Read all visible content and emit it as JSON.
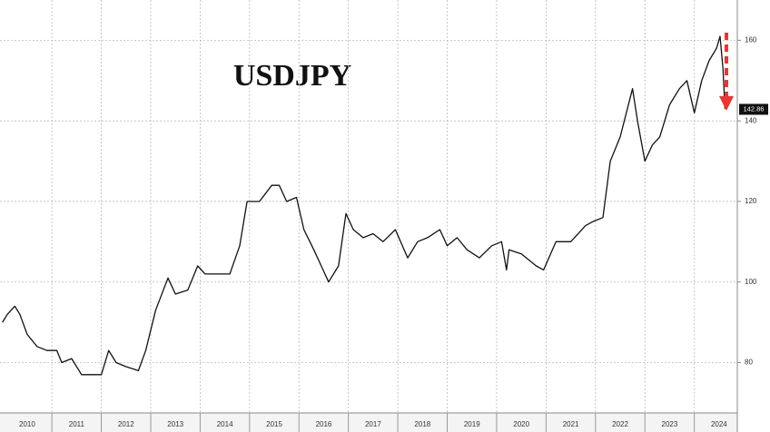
{
  "chart_data": {
    "type": "line",
    "title": "USDJPY",
    "x": [
      2010.0,
      2010.1,
      2010.25,
      2010.35,
      2010.5,
      2010.7,
      2010.9,
      2011.1,
      2011.2,
      2011.4,
      2011.6,
      2011.8,
      2012.0,
      2012.15,
      2012.3,
      2012.5,
      2012.75,
      2012.9,
      2013.1,
      2013.35,
      2013.5,
      2013.75,
      2013.95,
      2014.1,
      2014.4,
      2014.6,
      2014.8,
      2014.95,
      2015.2,
      2015.45,
      2015.6,
      2015.75,
      2015.95,
      2016.1,
      2016.3,
      2016.45,
      2016.6,
      2016.8,
      2016.95,
      2017.1,
      2017.3,
      2017.5,
      2017.7,
      2017.95,
      2018.2,
      2018.4,
      2018.6,
      2018.85,
      2019.0,
      2019.2,
      2019.4,
      2019.65,
      2019.9,
      2020.1,
      2020.2,
      2020.25,
      2020.5,
      2020.8,
      2020.95,
      2021.2,
      2021.5,
      2021.8,
      2021.95,
      2022.15,
      2022.3,
      2022.5,
      2022.75,
      2022.85,
      2023.0,
      2023.15,
      2023.3,
      2023.5,
      2023.7,
      2023.85,
      2024.0,
      2024.15,
      2024.3,
      2024.45,
      2024.52,
      2024.58,
      2024.62
    ],
    "series": [
      {
        "name": "USDJPY",
        "color": "#111111",
        "values": [
          90,
          92,
          94,
          92,
          87,
          84,
          83,
          83,
          80,
          81,
          77,
          77,
          77,
          83,
          80,
          79,
          78,
          83,
          93,
          101,
          97,
          98,
          104,
          102,
          102,
          102,
          109,
          120,
          120,
          124,
          124,
          120,
          121,
          113,
          108,
          104,
          100,
          104,
          117,
          113,
          111,
          112,
          110,
          113,
          106,
          110,
          111,
          113,
          109,
          111,
          108,
          106,
          109,
          110,
          103,
          108,
          107,
          104,
          103,
          110,
          110,
          114,
          115,
          116,
          130,
          136,
          148,
          140,
          130,
          134,
          136,
          144,
          148,
          150,
          142,
          150,
          155,
          158,
          161,
          153,
          143
        ]
      }
    ],
    "xlim": [
      2009.95,
      2024.87
    ],
    "xticks": [
      {
        "value": 2010.5,
        "label": "2010"
      },
      {
        "value": 2011.5,
        "label": "2011"
      },
      {
        "value": 2012.5,
        "label": "2012"
      },
      {
        "value": 2013.5,
        "label": "2013"
      },
      {
        "value": 2014.5,
        "label": "2014"
      },
      {
        "value": 2015.5,
        "label": "2015"
      },
      {
        "value": 2016.5,
        "label": "2016"
      },
      {
        "value": 2017.5,
        "label": "2017"
      },
      {
        "value": 2018.5,
        "label": "2018"
      },
      {
        "value": 2019.5,
        "label": "2019"
      },
      {
        "value": 2020.5,
        "label": "2020"
      },
      {
        "value": 2021.5,
        "label": "2021"
      },
      {
        "value": 2022.5,
        "label": "2022"
      },
      {
        "value": 2023.5,
        "label": "2023"
      },
      {
        "value": 2024.5,
        "label": "2024"
      }
    ],
    "xgrid": [
      2011,
      2012,
      2013,
      2014,
      2015,
      2016,
      2017,
      2018,
      2019,
      2020,
      2021,
      2022,
      2023,
      2024
    ],
    "ylim": [
      67.5,
      170
    ],
    "yticks": [
      80,
      100,
      120,
      140,
      160
    ],
    "grid": true,
    "annotation": {
      "value": 142.86,
      "label": "142.86"
    }
  }
}
